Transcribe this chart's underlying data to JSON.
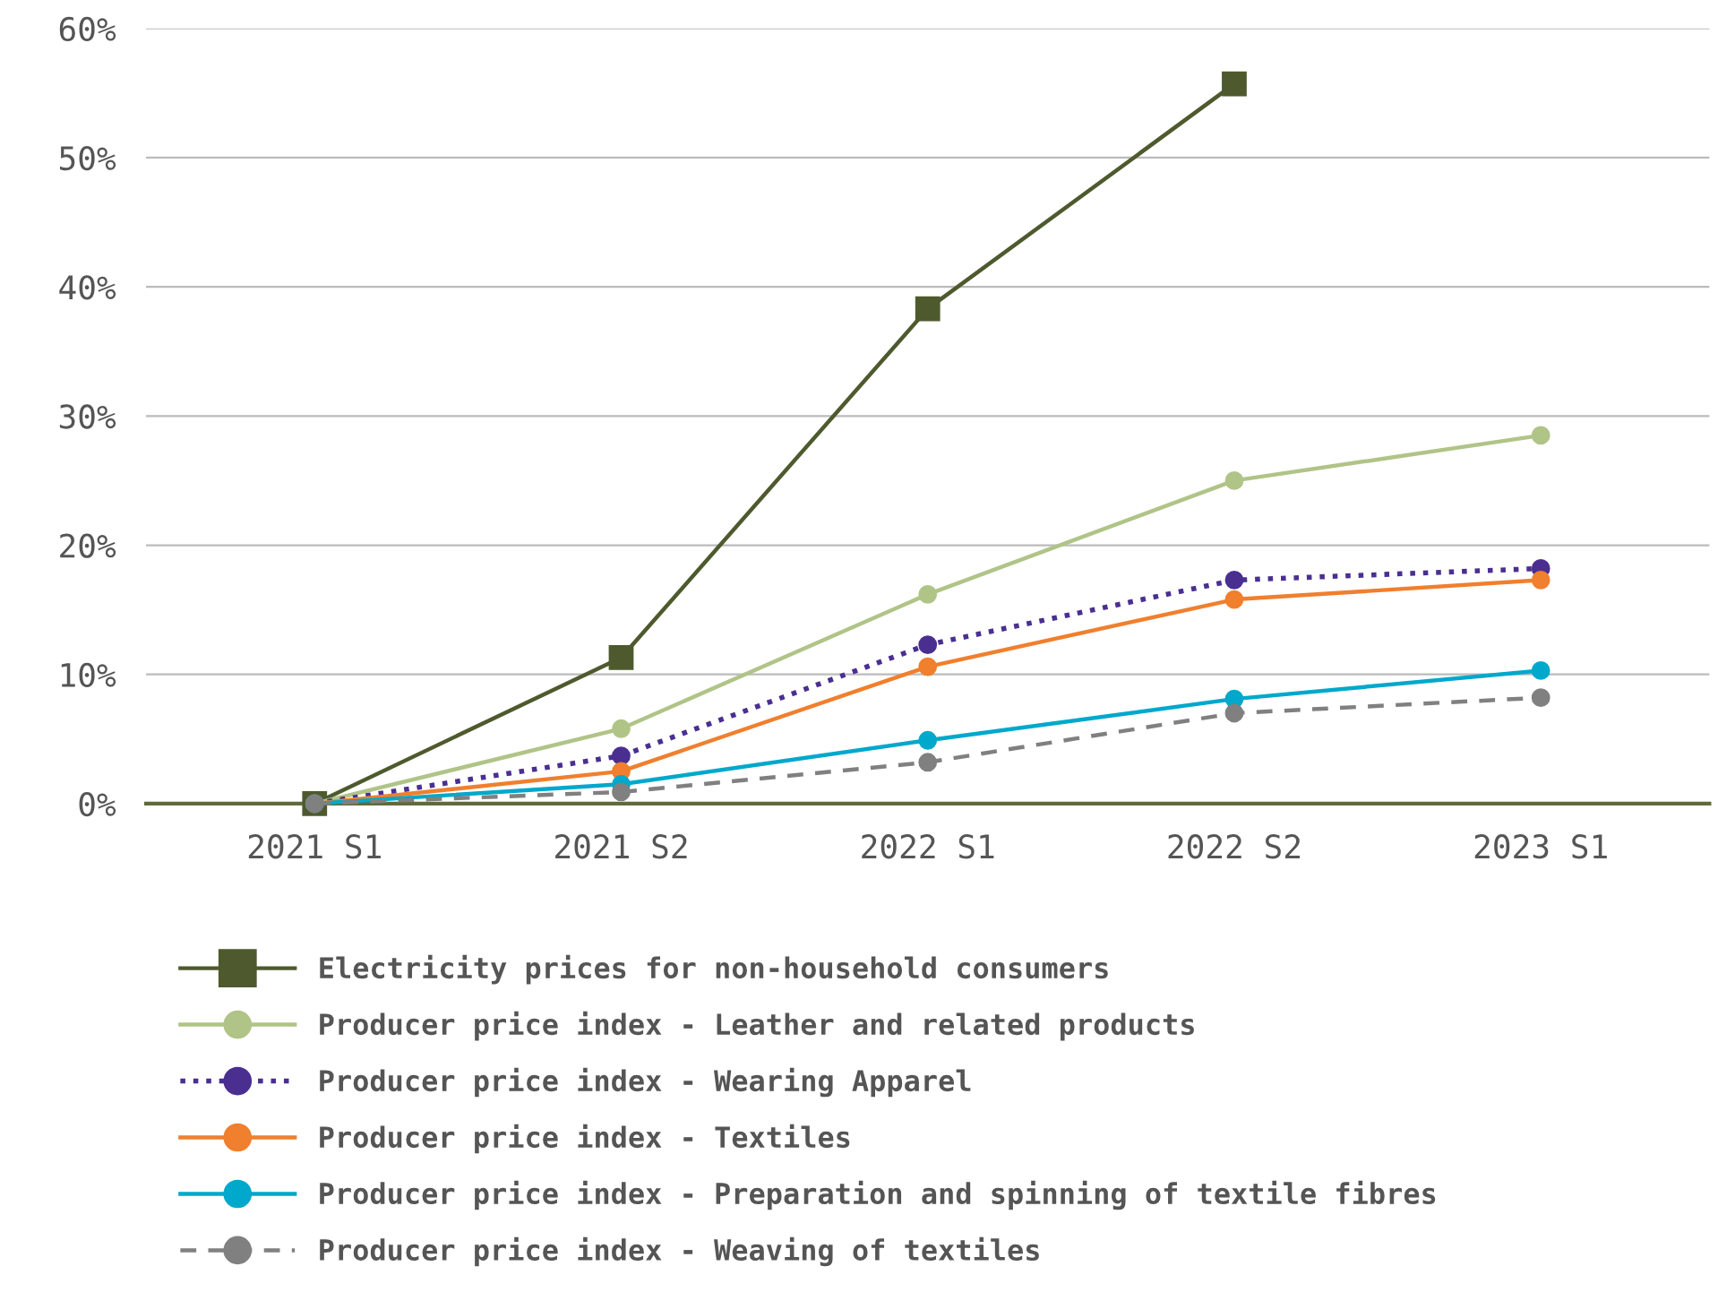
{
  "chart_data": {
    "type": "line",
    "categories": [
      "2021 S1",
      "2021 S2",
      "2022 S1",
      "2022 S2",
      "2023 S1"
    ],
    "ylim": [
      0,
      60
    ],
    "yticks": [
      {
        "value": 0,
        "label": "0%"
      },
      {
        "value": 10,
        "label": "10%"
      },
      {
        "value": 20,
        "label": "20%"
      },
      {
        "value": 30,
        "label": "30%"
      },
      {
        "value": 40,
        "label": "40%"
      },
      {
        "value": 50,
        "label": "50%"
      },
      {
        "value": 60,
        "label": "60%"
      }
    ],
    "grid": "y",
    "legend": "bottom",
    "series": [
      {
        "name": "Electricity prices for non-household consumers",
        "color": "#4e5a2e",
        "marker": "square",
        "line_style": "solid",
        "values": [
          0,
          11.3,
          38.3,
          55.7,
          null
        ]
      },
      {
        "name": "Producer price index - Leather and related products",
        "color": "#b0c487",
        "marker": "circle",
        "line_style": "solid",
        "values": [
          0,
          5.8,
          16.2,
          25.0,
          28.5
        ]
      },
      {
        "name": "Producer price index - Wearing Apparel",
        "color": "#4a2f91",
        "marker": "circle",
        "line_style": "dotted",
        "values": [
          0,
          3.7,
          12.3,
          17.3,
          18.2
        ]
      },
      {
        "name": "Producer price index - Textiles",
        "color": "#f07f2e",
        "marker": "circle",
        "line_style": "solid",
        "values": [
          0,
          2.5,
          10.6,
          15.8,
          17.3
        ]
      },
      {
        "name": "Producer price index - Preparation and spinning of textile fibres",
        "color": "#00a8cc",
        "marker": "circle",
        "line_style": "solid",
        "values": [
          0,
          1.5,
          4.9,
          8.1,
          10.3
        ]
      },
      {
        "name": "Producer price index - Weaving of textiles",
        "color": "#808080",
        "marker": "circle",
        "line_style": "dashed",
        "values": [
          0,
          0.9,
          3.2,
          7.0,
          8.2
        ]
      }
    ]
  }
}
